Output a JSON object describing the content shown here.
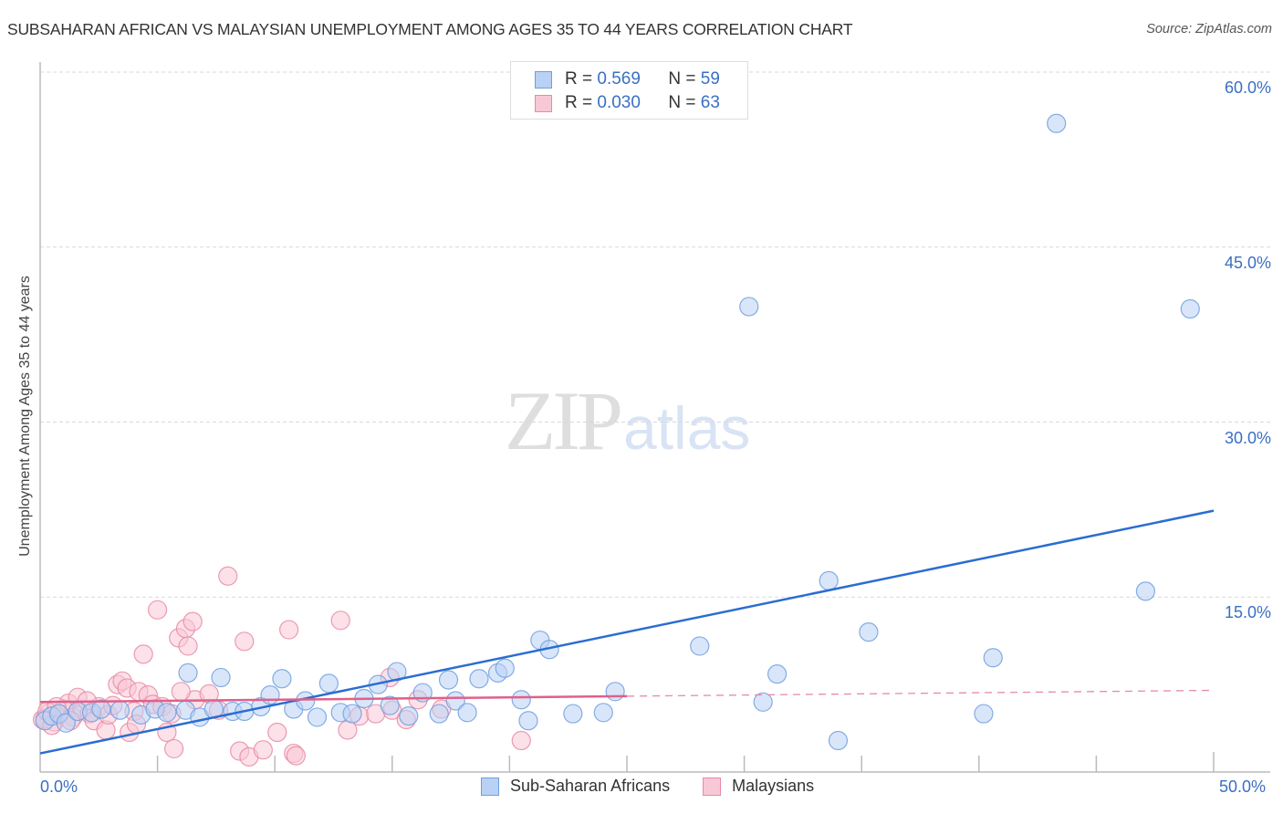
{
  "header": {
    "title": "SUBSAHARAN AFRICAN VS MALAYSIAN UNEMPLOYMENT AMONG AGES 35 TO 44 YEARS CORRELATION CHART",
    "source": "Source: ZipAtlas.com"
  },
  "watermark": {
    "zip": "ZIP",
    "atlas": "atlas"
  },
  "legend": {
    "rows": [
      {
        "r_label": "R = ",
        "r_value": "0.569",
        "n_label": "N = ",
        "n_value": "59",
        "color": "#b9d1f4"
      },
      {
        "r_label": "R = ",
        "r_value": "0.030",
        "n_label": "N = ",
        "n_value": "63",
        "color": "#f9c8d6"
      }
    ]
  },
  "bottom_legend": {
    "items": [
      {
        "label": "Sub-Saharan Africans",
        "color": "#b9d1f4"
      },
      {
        "label": "Malaysians",
        "color": "#f9c8d6"
      }
    ]
  },
  "axes": {
    "ylabel": "Unemployment Among Ages 35 to 44 years",
    "yticks": [
      "60.0%",
      "45.0%",
      "30.0%",
      "15.0%"
    ],
    "xticks": [
      "0.0%",
      "50.0%"
    ]
  },
  "chart_data": {
    "type": "scatter",
    "title": "SUBSAHARAN AFRICAN VS MALAYSIAN UNEMPLOYMENT AMONG AGES 35 TO 44 YEARS CORRELATION CHART",
    "xlabel": "",
    "ylabel": "Unemployment Among Ages 35 to 44 years",
    "xlim": [
      0,
      50
    ],
    "ylim": [
      0,
      60
    ],
    "x_ticks": [
      0,
      5,
      10,
      15,
      20,
      25,
      30,
      35,
      40,
      45,
      50
    ],
    "x_tick_labels_shown": [
      "0.0%",
      "50.0%"
    ],
    "y_ticks": [
      15,
      30,
      45,
      60
    ],
    "y_tick_labels": [
      "15.0%",
      "30.0%",
      "45.0%",
      "60.0%"
    ],
    "grid": "horizontal dashed",
    "legend_position": "top-center and bottom",
    "series": [
      {
        "name": "Sub-Saharan Africans",
        "color": "#6e9fe0",
        "fill": "#b9d1f4",
        "R": 0.569,
        "N": 59,
        "trend": {
          "x": [
            0,
            50
          ],
          "y": [
            1.6,
            22.4
          ]
        },
        "points": [
          [
            0.2,
            4.4
          ],
          [
            0.5,
            4.8
          ],
          [
            0.8,
            5.0
          ],
          [
            1.1,
            4.2
          ],
          [
            1.6,
            5.2
          ],
          [
            2.2,
            5.1
          ],
          [
            2.6,
            5.4
          ],
          [
            3.4,
            5.3
          ],
          [
            4.3,
            4.9
          ],
          [
            4.9,
            5.4
          ],
          [
            5.4,
            5.1
          ],
          [
            6.2,
            5.3
          ],
          [
            6.3,
            8.5
          ],
          [
            6.8,
            4.7
          ],
          [
            7.4,
            5.4
          ],
          [
            7.7,
            8.1
          ],
          [
            8.2,
            5.2
          ],
          [
            8.7,
            5.2
          ],
          [
            9.4,
            5.6
          ],
          [
            9.8,
            6.6
          ],
          [
            10.3,
            8.0
          ],
          [
            10.8,
            5.4
          ],
          [
            11.3,
            6.1
          ],
          [
            11.8,
            4.7
          ],
          [
            12.3,
            7.6
          ],
          [
            12.8,
            5.1
          ],
          [
            13.3,
            5.0
          ],
          [
            13.8,
            6.3
          ],
          [
            14.4,
            7.5
          ],
          [
            14.9,
            5.7
          ],
          [
            15.2,
            8.6
          ],
          [
            15.7,
            4.8
          ],
          [
            16.3,
            6.8
          ],
          [
            17.0,
            5.0
          ],
          [
            17.4,
            7.9
          ],
          [
            17.7,
            6.1
          ],
          [
            18.2,
            5.1
          ],
          [
            18.7,
            8.0
          ],
          [
            19.5,
            8.5
          ],
          [
            19.8,
            8.9
          ],
          [
            20.5,
            6.2
          ],
          [
            20.8,
            4.4
          ],
          [
            21.3,
            11.3
          ],
          [
            21.7,
            10.5
          ],
          [
            22.7,
            5.0
          ],
          [
            24.0,
            5.1
          ],
          [
            24.5,
            6.9
          ],
          [
            28.1,
            10.8
          ],
          [
            30.8,
            6.0
          ],
          [
            31.4,
            8.4
          ],
          [
            33.6,
            16.4
          ],
          [
            34.0,
            2.7
          ],
          [
            35.3,
            12.0
          ],
          [
            40.6,
            9.8
          ],
          [
            40.2,
            5.0
          ],
          [
            43.3,
            55.6
          ],
          [
            30.2,
            39.9
          ],
          [
            49.0,
            39.7
          ],
          [
            47.1,
            15.5
          ]
        ]
      },
      {
        "name": "Malaysians",
        "color": "#e889a6",
        "fill": "#f9c8d6",
        "R": 0.03,
        "N": 63,
        "trend": {
          "x": [
            0,
            25
          ],
          "y": [
            6.0,
            6.5
          ],
          "dashed_extension": {
            "x": [
              25,
              50
            ],
            "y": [
              6.5,
              7.0
            ]
          }
        },
        "points": [
          [
            0.2,
            4.6
          ],
          [
            0.4,
            5.1
          ],
          [
            0.6,
            4.3
          ],
          [
            0.8,
            4.9
          ],
          [
            1.0,
            5.4
          ],
          [
            1.2,
            5.9
          ],
          [
            1.4,
            4.7
          ],
          [
            1.6,
            6.4
          ],
          [
            1.8,
            5.3
          ],
          [
            2.1,
            5.0
          ],
          [
            2.3,
            4.4
          ],
          [
            2.5,
            5.6
          ],
          [
            2.8,
            3.6
          ],
          [
            2.9,
            4.9
          ],
          [
            3.1,
            5.7
          ],
          [
            3.3,
            7.5
          ],
          [
            3.5,
            7.8
          ],
          [
            3.7,
            7.2
          ],
          [
            3.8,
            3.4
          ],
          [
            4.0,
            5.2
          ],
          [
            4.1,
            4.1
          ],
          [
            4.2,
            6.9
          ],
          [
            4.4,
            10.1
          ],
          [
            4.6,
            6.6
          ],
          [
            4.8,
            5.8
          ],
          [
            5.0,
            13.9
          ],
          [
            5.2,
            5.6
          ],
          [
            5.4,
            3.4
          ],
          [
            5.6,
            5.0
          ],
          [
            5.7,
            2.0
          ],
          [
            5.9,
            11.5
          ],
          [
            6.2,
            12.3
          ],
          [
            6.5,
            12.9
          ],
          [
            6.6,
            6.2
          ],
          [
            6.3,
            10.8
          ],
          [
            6.0,
            6.9
          ],
          [
            7.2,
            6.7
          ],
          [
            7.6,
            5.3
          ],
          [
            8.0,
            16.8
          ],
          [
            8.5,
            1.8
          ],
          [
            8.7,
            11.2
          ],
          [
            8.9,
            1.3
          ],
          [
            9.5,
            1.9
          ],
          [
            10.1,
            3.4
          ],
          [
            10.6,
            12.2
          ],
          [
            10.8,
            1.6
          ],
          [
            10.9,
            1.4
          ],
          [
            12.8,
            13.0
          ],
          [
            13.1,
            3.6
          ],
          [
            13.6,
            4.8
          ],
          [
            14.3,
            5.0
          ],
          [
            14.9,
            8.1
          ],
          [
            15.0,
            5.3
          ],
          [
            15.6,
            4.5
          ],
          [
            16.1,
            6.2
          ],
          [
            17.1,
            5.4
          ],
          [
            20.5,
            2.7
          ],
          [
            0.1,
            4.5
          ],
          [
            0.3,
            5.2
          ],
          [
            0.5,
            4.0
          ],
          [
            0.7,
            5.6
          ],
          [
            1.3,
            4.4
          ],
          [
            2.0,
            6.1
          ]
        ]
      }
    ]
  }
}
